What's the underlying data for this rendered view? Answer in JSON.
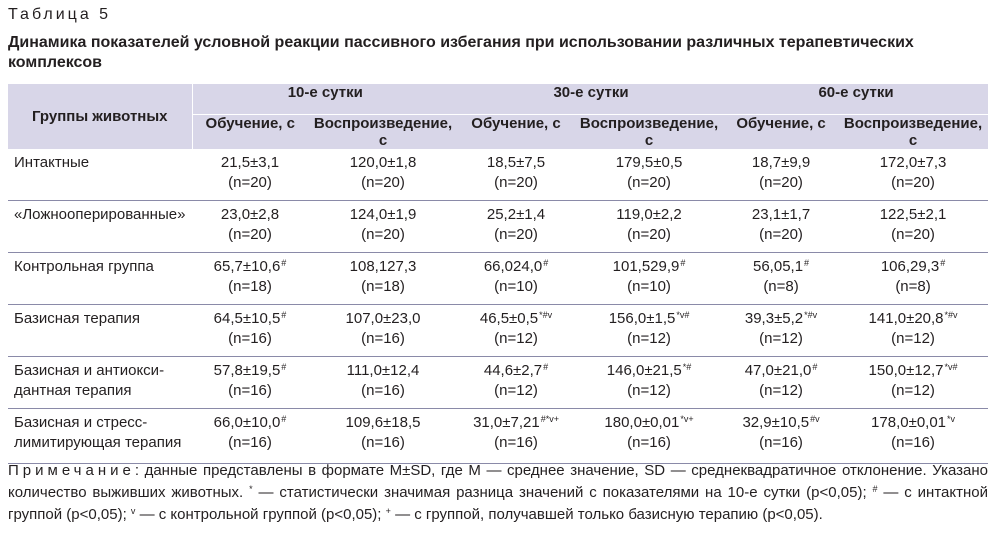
{
  "table_label": "Таблица 5",
  "table_title": "Динамика показателей условной реакции пассивного избегания при использовании различных терапевтических комплексов",
  "header": {
    "group_col": "Группы животных",
    "periods": [
      "10-е сутки",
      "30-е сутки",
      "60-е сутки"
    ],
    "sub_learn": "Обучение, с",
    "sub_repr": "Воспроизведение, с"
  },
  "rows": [
    {
      "name": "Интактные",
      "cells": [
        {
          "v": "21,5±3,1",
          "m": "",
          "n": "(n=20)"
        },
        {
          "v": "120,0±1,8",
          "m": "",
          "n": "(n=20)"
        },
        {
          "v": "18,5±7,5",
          "m": "",
          "n": "(n=20)"
        },
        {
          "v": "179,5±0,5",
          "m": "",
          "n": "(n=20)"
        },
        {
          "v": "18,7±9,9",
          "m": "",
          "n": "(n=20)"
        },
        {
          "v": "172,0±7,3",
          "m": "",
          "n": "(n=20)"
        }
      ]
    },
    {
      "name": "«Ложнооперированные»",
      "cells": [
        {
          "v": "23,0±2,8",
          "m": "",
          "n": "(n=20)"
        },
        {
          "v": "124,0±1,9",
          "m": "",
          "n": "(n=20)"
        },
        {
          "v": "25,2±1,4",
          "m": "",
          "n": "(n=20)"
        },
        {
          "v": "119,0±2,2",
          "m": "",
          "n": "(n=20)"
        },
        {
          "v": "23,1±1,7",
          "m": "",
          "n": "(n=20)"
        },
        {
          "v": "122,5±2,1",
          "m": "",
          "n": "(n=20)"
        }
      ]
    },
    {
      "name": "Контрольная группа",
      "cells": [
        {
          "v": "65,7±10,6",
          "m": "#",
          "n": "(n=18)"
        },
        {
          "v": "108,127,3",
          "m": "",
          "n": "(n=18)"
        },
        {
          "v": "66,024,0",
          "m": "#",
          "n": "(n=10)"
        },
        {
          "v": "101,529,9",
          "m": "#",
          "n": "(n=10)"
        },
        {
          "v": "56,05,1",
          "m": "#",
          "n": "(n=8)"
        },
        {
          "v": "106,29,3",
          "m": "#",
          "n": "(n=8)"
        }
      ]
    },
    {
      "name": "Базисная терапия",
      "cells": [
        {
          "v": "64,5±10,5",
          "m": "#",
          "n": "(n=16)"
        },
        {
          "v": "107,0±23,0",
          "m": "",
          "n": "(n=16)"
        },
        {
          "v": "46,5±0,5",
          "m": "*#v",
          "n": "(n=12)"
        },
        {
          "v": "156,0±1,5",
          "m": "*v#",
          "n": "(n=12)"
        },
        {
          "v": "39,3±5,2",
          "m": "*#v",
          "n": "(n=12)"
        },
        {
          "v": "141,0±20,8",
          "m": "*#v",
          "n": "(n=12)"
        }
      ]
    },
    {
      "name": "Базисная и антиокси-дантная терапия",
      "name_lines": [
        "Базисная и антиокси-",
        "дантная терапия"
      ],
      "cells": [
        {
          "v": "57,8±19,5",
          "m": "#",
          "n": "(n=16)"
        },
        {
          "v": "111,0±12,4",
          "m": "",
          "n": "(n=16)"
        },
        {
          "v": "44,6±2,7",
          "m": "#",
          "n": "(n=12)"
        },
        {
          "v": "146,0±21,5",
          "m": "*#",
          "n": "(n=12)"
        },
        {
          "v": "47,0±21,0",
          "m": "#",
          "n": "(n=12)"
        },
        {
          "v": "150,0±12,7",
          "m": "*v#",
          "n": "(n=12)"
        }
      ]
    },
    {
      "name": "Базисная и стресс-лимитирующая терапия",
      "name_lines": [
        "Базисная и стресс-",
        "лимитирующая терапия"
      ],
      "cells": [
        {
          "v": "66,0±10,0",
          "m": "#",
          "n": "(n=16)"
        },
        {
          "v": "109,6±18,5",
          "m": "",
          "n": "(n=16)"
        },
        {
          "v": "31,0±7,21",
          "m": "#*v+",
          "n": "(n=16)"
        },
        {
          "v": "180,0±0,01",
          "m": "*v+",
          "n": "(n=16)"
        },
        {
          "v": "32,9±10,5",
          "m": "#v",
          "n": "(n=16)"
        },
        {
          "v": "178,0±0,01",
          "m": "*v",
          "n": "(n=16)"
        }
      ]
    }
  ],
  "note": {
    "label": "Примечание",
    "parts": [
      {
        "t": ": данные представлены в формате M±SD, где M — среднее значение, SD — среднеквадратичное отклонение. Указано количество выживших животных. "
      },
      {
        "sup": "*"
      },
      {
        "t": " — статистически значимая разница значений с показателями на 10-е сутки (p<0,05); "
      },
      {
        "sup": "#"
      },
      {
        "t": " — с интактной группой (p<0,05); "
      },
      {
        "sup": "v"
      },
      {
        "t": " — с контрольной группой (p<0,05); "
      },
      {
        "sup": "+"
      },
      {
        "t": " — с группой, получавшей только базисную терапию (p<0,05)."
      }
    ]
  },
  "colors": {
    "header_bg": "#d8d6e8",
    "row_rule": "#8a8aa8",
    "text": "#231f20"
  }
}
